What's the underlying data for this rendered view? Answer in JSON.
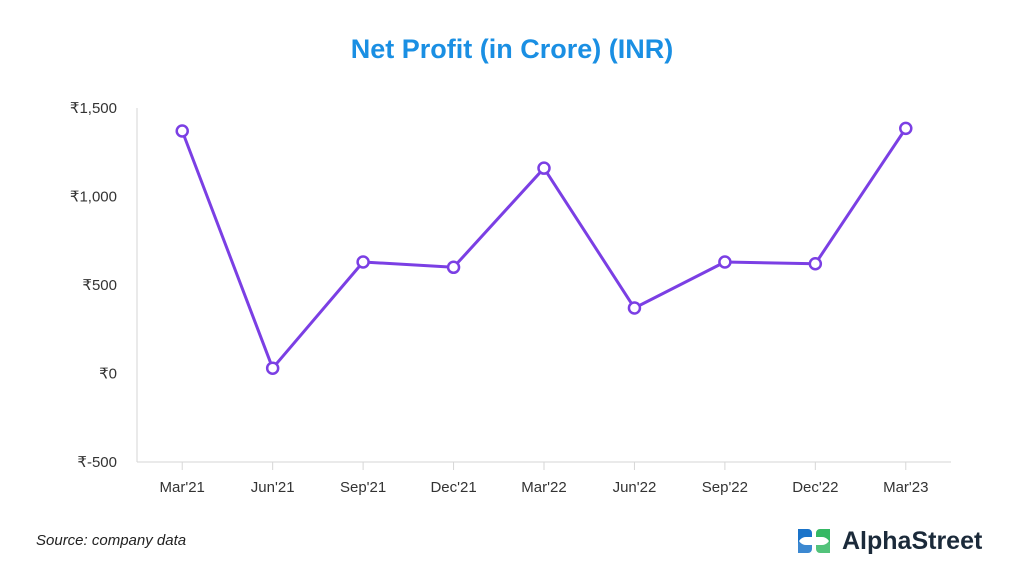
{
  "title": "Net Profit (in Crore) (INR)",
  "source": "Source: company data",
  "brand": {
    "name": "AlphaStreet",
    "logo_icon": "alphastreet-logo-icon",
    "colors": [
      "#1a73c9",
      "#35b864"
    ]
  },
  "chart_data": {
    "type": "line",
    "title": "Net Profit (in Crore) (INR)",
    "categories": [
      "Mar'21",
      "Jun'21",
      "Sep'21",
      "Dec'21",
      "Mar'22",
      "Jun'22",
      "Sep'22",
      "Dec'22",
      "Mar'23"
    ],
    "series": [
      {
        "values": [
          1370,
          30,
          630,
          600,
          1160,
          370,
          630,
          620,
          1385
        ],
        "color": "#7b3fe4"
      }
    ],
    "y_ticks": [
      -500,
      0,
      500,
      1000,
      1500
    ],
    "y_tick_labels": [
      "₹-500",
      "₹0",
      "₹500",
      "₹1,000",
      "₹1,500"
    ],
    "ylim": [
      -500,
      1500
    ],
    "xlabel": "",
    "ylabel": "",
    "grid": false,
    "legend": "none"
  }
}
